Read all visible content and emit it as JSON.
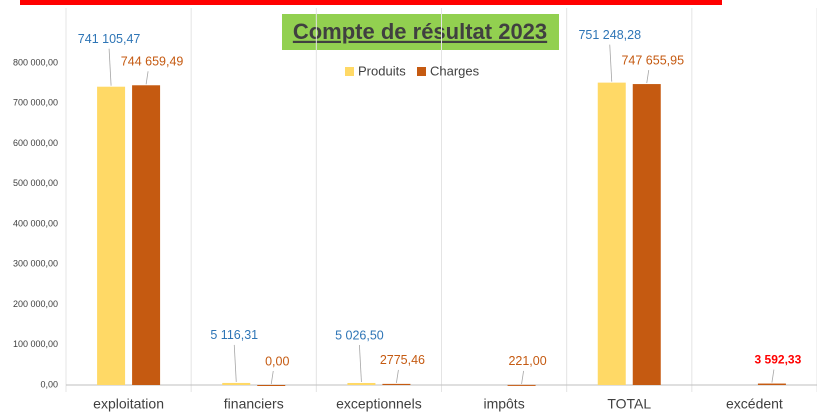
{
  "chart_data": {
    "type": "bar",
    "title": "Compte de résultat 2023",
    "categories": [
      "exploitation",
      "financiers",
      "exceptionnels",
      "impôts",
      "TOTAL",
      "excédent"
    ],
    "series": [
      {
        "name": "Produits",
        "color": "#ffd966",
        "label_color": "#2e75b6",
        "values": [
          741105.47,
          5116.31,
          5026.5,
          null,
          751248.28,
          null
        ],
        "value_labels": [
          "741 105,47",
          "5 116,31",
          "5 026,50",
          null,
          "751 248,28",
          null
        ]
      },
      {
        "name": "Charges",
        "color": "#c55a11",
        "label_color": "#c55a11",
        "values": [
          744659.49,
          0,
          2775.46,
          221,
          747655.95,
          3592.33
        ],
        "value_labels": [
          "744 659,49",
          "0,00",
          "2775,46",
          "221,00",
          "747 655,95",
          "3 592,33"
        ]
      }
    ],
    "ylim": [
      0,
      800000
    ],
    "yticks": [
      {
        "value": 0,
        "label": "0,00"
      },
      {
        "value": 100000,
        "label": "100 000,00"
      },
      {
        "value": 200000,
        "label": "200 000,00"
      },
      {
        "value": 300000,
        "label": "300 000,00"
      },
      {
        "value": 400000,
        "label": "400 000,00"
      },
      {
        "value": 500000,
        "label": "500 000,00"
      },
      {
        "value": 600000,
        "label": "600 000,00"
      },
      {
        "value": 700000,
        "label": "700 000,00"
      },
      {
        "value": 800000,
        "label": "800 000,00"
      }
    ],
    "grid": false,
    "legend": "top"
  }
}
